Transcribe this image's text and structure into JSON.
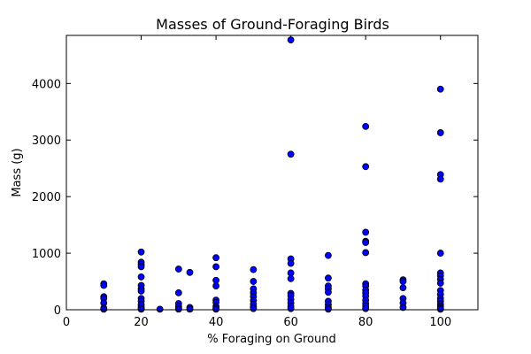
{
  "chart_data": {
    "type": "scatter",
    "title": "Masses of Ground-Foraging Birds",
    "xlabel": "% Foraging on Ground",
    "ylabel": "Mass (g)",
    "xlim": [
      0,
      110
    ],
    "ylim": [
      0,
      4850
    ],
    "xticks": [
      0,
      20,
      40,
      60,
      80,
      100
    ],
    "yticks": [
      0,
      1000,
      2000,
      3000,
      4000
    ],
    "grid": false,
    "marker_color": "#0000ff",
    "marker_edge": "#000000",
    "points": [
      {
        "x": 10,
        "y": 460
      },
      {
        "x": 10,
        "y": 430
      },
      {
        "x": 10,
        "y": 230
      },
      {
        "x": 10,
        "y": 200
      },
      {
        "x": 10,
        "y": 120
      },
      {
        "x": 10,
        "y": 30
      },
      {
        "x": 10,
        "y": 10
      },
      {
        "x": 20,
        "y": 1020
      },
      {
        "x": 20,
        "y": 840
      },
      {
        "x": 20,
        "y": 800
      },
      {
        "x": 20,
        "y": 760
      },
      {
        "x": 20,
        "y": 580
      },
      {
        "x": 20,
        "y": 430
      },
      {
        "x": 20,
        "y": 370
      },
      {
        "x": 20,
        "y": 330
      },
      {
        "x": 20,
        "y": 200
      },
      {
        "x": 20,
        "y": 150
      },
      {
        "x": 20,
        "y": 90
      },
      {
        "x": 20,
        "y": 50
      },
      {
        "x": 20,
        "y": 20
      },
      {
        "x": 20,
        "y": 10
      },
      {
        "x": 25,
        "y": 10
      },
      {
        "x": 30,
        "y": 720
      },
      {
        "x": 30,
        "y": 300
      },
      {
        "x": 30,
        "y": 110
      },
      {
        "x": 30,
        "y": 60
      },
      {
        "x": 30,
        "y": 20
      },
      {
        "x": 30,
        "y": 10
      },
      {
        "x": 33,
        "y": 660
      },
      {
        "x": 33,
        "y": 40
      },
      {
        "x": 33,
        "y": 10
      },
      {
        "x": 40,
        "y": 920
      },
      {
        "x": 40,
        "y": 760
      },
      {
        "x": 40,
        "y": 520
      },
      {
        "x": 40,
        "y": 420
      },
      {
        "x": 40,
        "y": 170
      },
      {
        "x": 40,
        "y": 130
      },
      {
        "x": 40,
        "y": 60
      },
      {
        "x": 40,
        "y": 30
      },
      {
        "x": 40,
        "y": 10
      },
      {
        "x": 50,
        "y": 710
      },
      {
        "x": 50,
        "y": 500
      },
      {
        "x": 50,
        "y": 370
      },
      {
        "x": 50,
        "y": 300
      },
      {
        "x": 50,
        "y": 230
      },
      {
        "x": 50,
        "y": 160
      },
      {
        "x": 50,
        "y": 100
      },
      {
        "x": 50,
        "y": 50
      },
      {
        "x": 50,
        "y": 20
      },
      {
        "x": 60,
        "y": 4770
      },
      {
        "x": 60,
        "y": 2750
      },
      {
        "x": 60,
        "y": 900
      },
      {
        "x": 60,
        "y": 820
      },
      {
        "x": 60,
        "y": 650
      },
      {
        "x": 60,
        "y": 550
      },
      {
        "x": 60,
        "y": 290
      },
      {
        "x": 60,
        "y": 250
      },
      {
        "x": 60,
        "y": 180
      },
      {
        "x": 60,
        "y": 120
      },
      {
        "x": 60,
        "y": 60
      },
      {
        "x": 60,
        "y": 20
      },
      {
        "x": 70,
        "y": 960
      },
      {
        "x": 70,
        "y": 560
      },
      {
        "x": 70,
        "y": 420
      },
      {
        "x": 70,
        "y": 370
      },
      {
        "x": 70,
        "y": 310
      },
      {
        "x": 70,
        "y": 150
      },
      {
        "x": 70,
        "y": 90
      },
      {
        "x": 70,
        "y": 40
      },
      {
        "x": 70,
        "y": 10
      },
      {
        "x": 80,
        "y": 3240
      },
      {
        "x": 80,
        "y": 2530
      },
      {
        "x": 80,
        "y": 1370
      },
      {
        "x": 80,
        "y": 1210
      },
      {
        "x": 80,
        "y": 1190
      },
      {
        "x": 80,
        "y": 1010
      },
      {
        "x": 80,
        "y": 460
      },
      {
        "x": 80,
        "y": 420
      },
      {
        "x": 80,
        "y": 350
      },
      {
        "x": 80,
        "y": 300
      },
      {
        "x": 80,
        "y": 240
      },
      {
        "x": 80,
        "y": 170
      },
      {
        "x": 80,
        "y": 110
      },
      {
        "x": 80,
        "y": 60
      },
      {
        "x": 80,
        "y": 20
      },
      {
        "x": 90,
        "y": 530
      },
      {
        "x": 90,
        "y": 500
      },
      {
        "x": 90,
        "y": 390
      },
      {
        "x": 90,
        "y": 200
      },
      {
        "x": 90,
        "y": 120
      },
      {
        "x": 90,
        "y": 40
      },
      {
        "x": 100,
        "y": 3900
      },
      {
        "x": 100,
        "y": 3130
      },
      {
        "x": 100,
        "y": 2390
      },
      {
        "x": 100,
        "y": 2310
      },
      {
        "x": 100,
        "y": 1000
      },
      {
        "x": 100,
        "y": 650
      },
      {
        "x": 100,
        "y": 600
      },
      {
        "x": 100,
        "y": 540
      },
      {
        "x": 100,
        "y": 470
      },
      {
        "x": 100,
        "y": 340
      },
      {
        "x": 100,
        "y": 270
      },
      {
        "x": 100,
        "y": 200
      },
      {
        "x": 100,
        "y": 150
      },
      {
        "x": 100,
        "y": 100
      },
      {
        "x": 100,
        "y": 60
      },
      {
        "x": 100,
        "y": 30
      },
      {
        "x": 100,
        "y": 10
      }
    ]
  }
}
